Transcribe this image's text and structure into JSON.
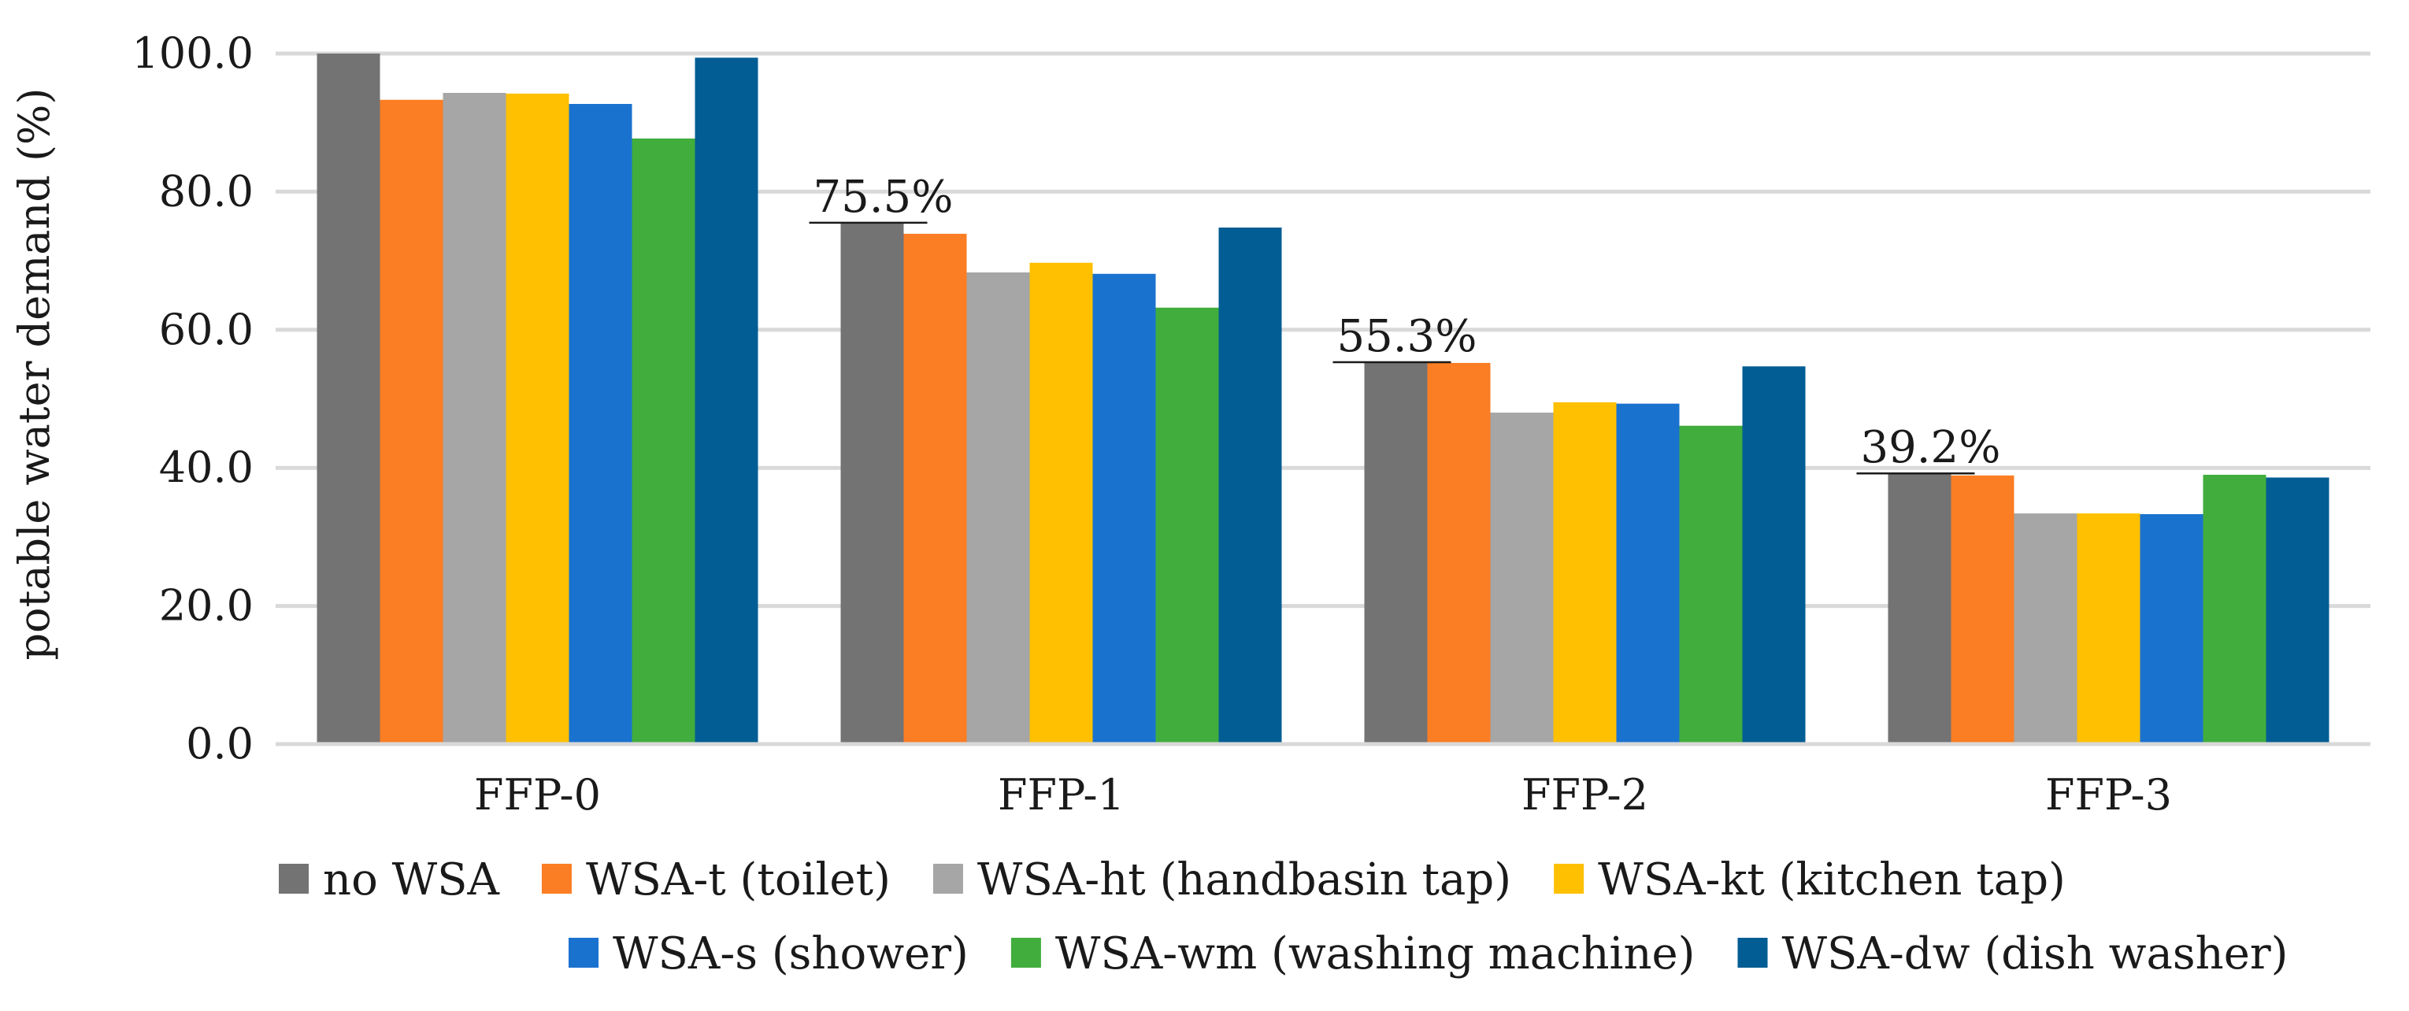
{
  "chart_data": {
    "type": "bar",
    "title": "",
    "xlabel": "",
    "ylabel": "potable water demand (%)",
    "ylim": [
      0,
      100
    ],
    "ytick_values": [
      0,
      20,
      40,
      60,
      80,
      100
    ],
    "ytick_labels": [
      "0.0",
      "20.0",
      "40.0",
      "60.0",
      "80.0",
      "100.0"
    ],
    "grid": true,
    "legend_position": "bottom",
    "categories": [
      "FFP-0",
      "FFP-1",
      "FFP-2",
      "FFP-3"
    ],
    "series": [
      {
        "name": "no WSA",
        "color": "#737373",
        "values": [
          100.0,
          75.5,
          55.3,
          39.2
        ]
      },
      {
        "name": "WSA-t (toilet)",
        "color": "#fb7d24",
        "values": [
          93.3,
          73.9,
          55.2,
          38.9
        ]
      },
      {
        "name": "WSA-ht (handbasin tap)",
        "color": "#a6a6a6",
        "values": [
          94.3,
          68.3,
          48.0,
          33.4
        ]
      },
      {
        "name": "WSA-kt (kitchen tap)",
        "color": "#fec000",
        "values": [
          94.2,
          69.7,
          49.5,
          33.4
        ]
      },
      {
        "name": "WSA-s (shower)",
        "color": "#1a72cf",
        "values": [
          92.7,
          68.1,
          49.3,
          33.3
        ]
      },
      {
        "name": "WSA-wm (washing machine)",
        "color": "#41ad3d",
        "values": [
          87.7,
          63.2,
          46.1,
          39.0
        ]
      },
      {
        "name": "WSA-dw (dish washer)",
        "color": "#015d94",
        "values": [
          99.4,
          74.8,
          54.7,
          38.6
        ]
      }
    ],
    "annotations": [
      {
        "category": "FFP-1",
        "text": "75.5%",
        "value": 75.5
      },
      {
        "category": "FFP-2",
        "text": "55.3%",
        "value": 55.3
      },
      {
        "category": "FFP-3",
        "text": "39.2%",
        "value": 39.2
      }
    ]
  }
}
